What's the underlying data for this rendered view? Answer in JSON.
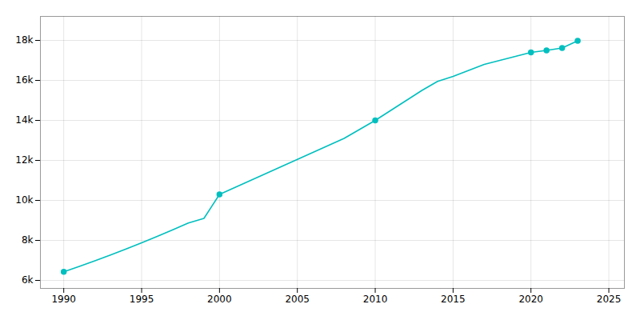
{
  "chart_data": {
    "type": "line",
    "x": [
      1990,
      1991,
      1992,
      1993,
      1994,
      1995,
      1996,
      1997,
      1998,
      1999,
      2000,
      2001,
      2002,
      2003,
      2004,
      2005,
      2006,
      2007,
      2008,
      2009,
      2010,
      2011,
      2012,
      2013,
      2014,
      2015,
      2016,
      2017,
      2018,
      2019,
      2020,
      2021,
      2022,
      2023
    ],
    "series": [
      {
        "type": "line",
        "color": "#00BFBF",
        "values": [
          6430,
          6700,
          6980,
          7270,
          7570,
          7880,
          8200,
          8530,
          8870,
          9100,
          10300,
          10650,
          11000,
          11350,
          11700,
          12050,
          12400,
          12750,
          13100,
          13550,
          14000,
          14500,
          15000,
          15500,
          15950,
          16200,
          16500,
          16800,
          17000,
          17200,
          17400,
          17500,
          17620,
          17980
        ]
      },
      {
        "type": "scatter",
        "color": "#00BFBF",
        "marker": "circle",
        "values": [
          6430,
          null,
          null,
          null,
          null,
          null,
          null,
          null,
          null,
          null,
          10300,
          null,
          null,
          null,
          null,
          null,
          null,
          null,
          null,
          null,
          14000,
          null,
          null,
          null,
          null,
          null,
          null,
          null,
          null,
          null,
          17400,
          17500,
          17620,
          17980
        ]
      }
    ],
    "xlim": [
      1988.5,
      2026
    ],
    "xticks": [
      1990,
      1995,
      2000,
      2005,
      2010,
      2015,
      2020,
      2025
    ],
    "ylim": [
      5600,
      19200
    ],
    "yticks": [
      {
        "value": 6000,
        "label": "6k"
      },
      {
        "value": 8000,
        "label": "8k"
      },
      {
        "value": 10000,
        "label": "10k"
      },
      {
        "value": 12000,
        "label": "12k"
      },
      {
        "value": 14000,
        "label": "14k"
      },
      {
        "value": 16000,
        "label": "16k"
      },
      {
        "value": 18000,
        "label": "18k"
      }
    ],
    "grid": true
  }
}
